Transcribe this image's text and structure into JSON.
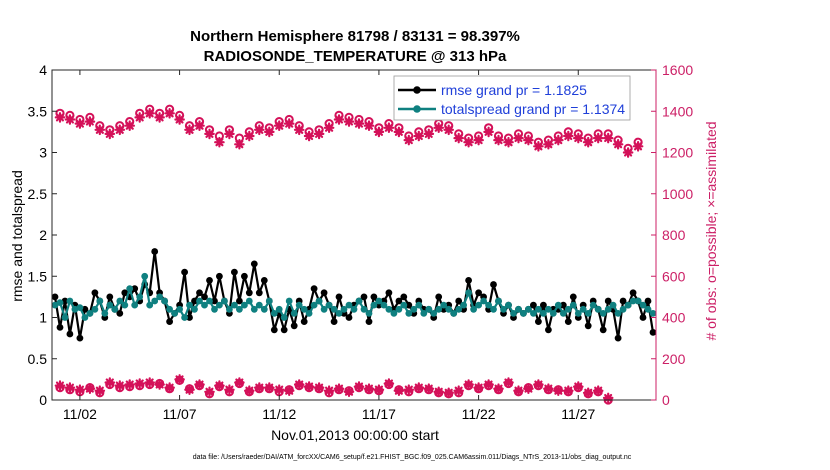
{
  "chart_data": {
    "type": "line",
    "title": "Northern Hemisphere 81798 / 83131 = 98.397%",
    "subtitle": "RADIOSONDE_TEMPERATURE @ 313 hPa",
    "xlabel": "Nov.01,2013 00:00:00 start",
    "ylabel_left": "rmse and totalspread",
    "ylabel_right": "# of obs: o=possible; ×=assimilated",
    "footnote": "data file: /Users/raeder/DAI/ATM_forcXX/CAM6_setup/f.e21.FHIST_BGC.f09_025.CAM6assim.011/Diags_NTrS_2013-11/obs_diag_output.nc",
    "xlim": [
      0.6,
      30.9
    ],
    "ylim_left": [
      0,
      4
    ],
    "ylim_right": [
      0,
      1600
    ],
    "x_ticks": [
      2,
      7,
      12,
      17,
      22,
      27
    ],
    "x_tick_labels": [
      "11/02",
      "11/07",
      "11/12",
      "11/17",
      "11/22",
      "11/27"
    ],
    "y_ticks_left": [
      0,
      0.5,
      1,
      1.5,
      2,
      2.5,
      3,
      3.5,
      4
    ],
    "y_tick_labels_left": [
      "0",
      "0.5",
      "1",
      "1.5",
      "2",
      "2.5",
      "3",
      "3.5",
      "4"
    ],
    "y_ticks_right": [
      0,
      200,
      400,
      600,
      800,
      1000,
      1200,
      1400,
      1600
    ],
    "y_tick_labels_right": [
      "0",
      "200",
      "400",
      "600",
      "800",
      "1000",
      "1200",
      "1400",
      "1600"
    ],
    "colors": {
      "rmse": "#000000",
      "spread": "#0f8080",
      "obs": "#d41159",
      "legend_text": "#1f3fd9",
      "axis_right": "#cc1f66"
    },
    "legend": [
      {
        "name": "rmse grand pr = 1.1825",
        "series": "rmse"
      },
      {
        "name": "totalspread grand pr = 1.1374",
        "series": "spread"
      }
    ],
    "series": [
      {
        "name": "rmse",
        "axis": "left",
        "x_start": 0.75,
        "dx": 0.25,
        "values": [
          1.25,
          0.88,
          1.2,
          0.8,
          1.15,
          0.75,
          1.1,
          1.05,
          1.3,
          1.2,
          1.0,
          1.25,
          1.1,
          1.05,
          1.3,
          1.25,
          1.35,
          1.2,
          1.4,
          1.3,
          1.8,
          1.3,
          1.2,
          0.95,
          1.05,
          1.15,
          1.55,
          1.0,
          1.2,
          1.3,
          1.25,
          1.45,
          1.2,
          1.5,
          1.2,
          1.05,
          1.55,
          1.2,
          1.5,
          1.3,
          1.65,
          1.3,
          1.45,
          1.2,
          0.85,
          1.05,
          0.85,
          1.1,
          0.9,
          1.2,
          0.95,
          1.1,
          1.35,
          1.2,
          1.3,
          1.15,
          0.95,
          1.25,
          1.05,
          1.0,
          1.15,
          1.2,
          1.25,
          0.95,
          1.25,
          1.15,
          1.2,
          1.3,
          1.1,
          1.2,
          1.25,
          1.15,
          1.05,
          1.2,
          1.1,
          1.1,
          1.0,
          1.25,
          1.1,
          1.15,
          1.05,
          1.2,
          1.1,
          1.45,
          1.15,
          1.3,
          1.25,
          1.1,
          1.4,
          1.2,
          1.05,
          1.15,
          1.0,
          1.1,
          1.05,
          1.1,
          1.15,
          0.95,
          1.15,
          0.85,
          1.1,
          1.1,
          1.15,
          0.95,
          1.25,
          1.0,
          1.15,
          0.9,
          1.2,
          1.1,
          0.85,
          1.2,
          1.1,
          0.75,
          1.2,
          1.15,
          1.3,
          1.2,
          1.0,
          1.2,
          0.82
        ]
      },
      {
        "name": "totalspread",
        "axis": "left",
        "x_start": 0.75,
        "dx": 0.25,
        "values": [
          1.15,
          1.18,
          1.0,
          1.2,
          1.1,
          1.12,
          1.0,
          1.05,
          1.1,
          1.2,
          1.05,
          1.15,
          1.1,
          1.2,
          1.15,
          1.35,
          1.15,
          1.25,
          1.5,
          1.15,
          1.2,
          1.25,
          1.2,
          1.1,
          1.05,
          1.1,
          1.0,
          1.15,
          1.1,
          1.2,
          1.15,
          1.2,
          1.1,
          1.15,
          1.2,
          1.1,
          1.15,
          1.1,
          1.15,
          1.2,
          1.1,
          1.15,
          1.1,
          1.2,
          1.05,
          1.1,
          1.0,
          1.2,
          1.05,
          1.15,
          1.1,
          1.05,
          1.15,
          1.2,
          1.1,
          1.15,
          1.1,
          1.05,
          1.1,
          1.15,
          1.1,
          1.2,
          1.1,
          1.05,
          1.15,
          1.2,
          1.15,
          1.1,
          1.05,
          1.1,
          1.15,
          1.05,
          1.1,
          1.15,
          1.05,
          1.1,
          1.05,
          1.1,
          1.15,
          1.1,
          1.05,
          1.1,
          1.15,
          1.3,
          1.1,
          1.15,
          1.2,
          1.15,
          1.1,
          1.2,
          1.1,
          1.15,
          1.05,
          1.1,
          1.05,
          1.1,
          1.05,
          1.1,
          1.05,
          1.1,
          1.05,
          1.15,
          1.05,
          1.1,
          1.15,
          1.05,
          1.1,
          1.05,
          1.15,
          1.1,
          1.05,
          1.1,
          1.15,
          1.05,
          1.1,
          1.15,
          1.2,
          1.2,
          1.15,
          1.1,
          1.05
        ]
      },
      {
        "name": "obs possible",
        "axis": "right",
        "x_start": 1,
        "dx": 0.5,
        "values": [
          1390,
          1380,
          1360,
          1370,
          1330,
          1310,
          1330,
          1350,
          1390,
          1410,
          1390,
          1410,
          1380,
          1330,
          1350,
          1310,
          1280,
          1310,
          1270,
          1300,
          1330,
          1320,
          1350,
          1360,
          1330,
          1300,
          1310,
          1340,
          1380,
          1370,
          1360,
          1350,
          1320,
          1340,
          1320,
          1280,
          1300,
          1310,
          1340,
          1330,
          1290,
          1270,
          1280,
          1320,
          1280,
          1270,
          1290,
          1280,
          1250,
          1260,
          1280,
          1300,
          1290,
          1270,
          1290,
          1290,
          1260,
          1220,
          1250
        ]
      },
      {
        "name": "obs assimilated",
        "axis": "right",
        "x_start": 1,
        "dx": 0.5,
        "values": [
          1370,
          1360,
          1340,
          1350,
          1310,
          1290,
          1310,
          1330,
          1370,
          1390,
          1370,
          1390,
          1360,
          1310,
          1330,
          1290,
          1250,
          1290,
          1240,
          1280,
          1310,
          1300,
          1330,
          1340,
          1310,
          1280,
          1290,
          1320,
          1360,
          1350,
          1340,
          1330,
          1300,
          1320,
          1300,
          1260,
          1280,
          1290,
          1320,
          1310,
          1270,
          1250,
          1260,
          1300,
          1260,
          1250,
          1270,
          1260,
          1230,
          1240,
          1260,
          1280,
          1270,
          1250,
          1270,
          1270,
          1240,
          1200,
          1230
        ]
      },
      {
        "name": "obs low possible",
        "axis": "right",
        "x_start": 1,
        "dx": 0.5,
        "values": [
          60,
          50,
          40,
          60,
          35,
          75,
          60,
          65,
          70,
          75,
          80,
          55,
          95,
          55,
          70,
          30,
          65,
          40,
          80,
          40,
          55,
          55,
          40,
          50,
          70,
          60,
          55,
          35,
          50,
          45,
          60,
          50,
          45,
          75,
          50,
          40,
          55,
          50,
          35,
          30,
          35,
          70,
          55,
          70,
          50,
          80,
          40,
          60,
          70,
          50,
          50,
          40,
          60,
          30,
          40,
          0
        ]
      },
      {
        "name": "obs low assimilated",
        "axis": "right",
        "x_start": 1,
        "dx": 0.5,
        "values": [
          70,
          60,
          50,
          55,
          45,
          85,
          70,
          75,
          80,
          85,
          75,
          60,
          100,
          50,
          75,
          40,
          70,
          50,
          85,
          45,
          60,
          60,
          50,
          45,
          75,
          65,
          60,
          45,
          55,
          40,
          65,
          55,
          50,
          80,
          45,
          50,
          60,
          55,
          40,
          35,
          45,
          75,
          60,
          75,
          55,
          85,
          45,
          55,
          75,
          55,
          45,
          45,
          65,
          35,
          45,
          10
        ]
      }
    ]
  }
}
